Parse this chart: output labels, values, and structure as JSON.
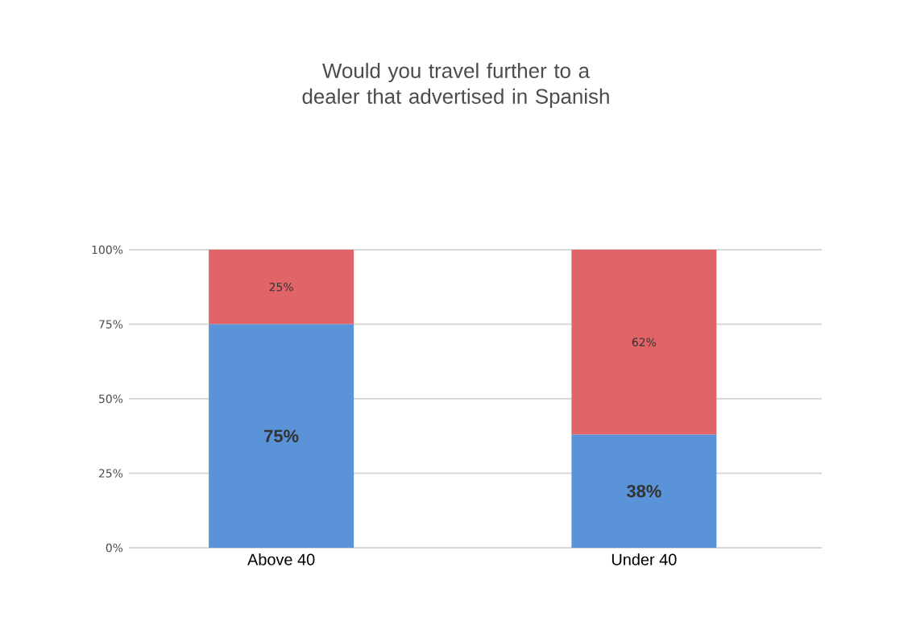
{
  "chart_data": {
    "type": "bar",
    "title": "Would you travel further to a dealer that advertised in Spanish",
    "categories": [
      "Above 40",
      "Under 40"
    ],
    "stacked": true,
    "grid": "y",
    "ylim": [
      0,
      100
    ],
    "yticks": [
      {
        "value": 0,
        "label": "0%"
      },
      {
        "value": 25,
        "label": "25%"
      },
      {
        "value": 50,
        "label": "50%"
      },
      {
        "value": 75,
        "label": "75%"
      },
      {
        "value": 100,
        "label": "100%"
      }
    ],
    "series": [
      {
        "color": "#5b93d8",
        "values": [
          75,
          38
        ],
        "value_labels": [
          "75%",
          "38%"
        ]
      },
      {
        "color": "#e06468",
        "values": [
          25,
          62
        ],
        "value_labels": [
          "25%",
          "62%"
        ]
      }
    ]
  }
}
